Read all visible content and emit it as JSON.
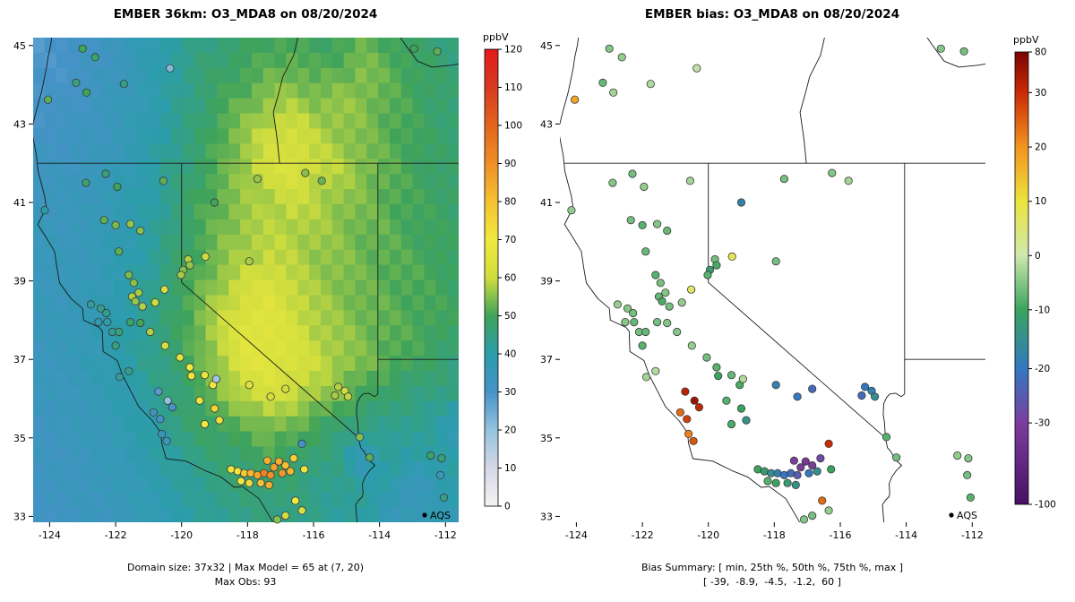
{
  "panels": [
    {
      "title": "EMBER 36km: O3_MDA8 on 08/20/2024",
      "colorbar_label": "ppbV",
      "legend_label": "AQS",
      "caption_line1": "Domain size: 37x32 | Max Model = 65 at (7, 20)",
      "caption_line2": "Max Obs: 93"
    },
    {
      "title": "EMBER bias: O3_MDA8 on 08/20/2024",
      "colorbar_label": "ppbV",
      "legend_label": "AQS",
      "caption_line1": "Bias Summary: [ min, 25th %, 50th %, 75th %, max ]",
      "caption_line2": "[ -39,  -8.9,  -4.5,  -1.2,  60 ]"
    }
  ],
  "stations": {
    "columns": [
      "lon",
      "lat",
      "obs_ppbv",
      "bias_ppbv"
    ],
    "rows": [
      [
        -123.0,
        44.92,
        50,
        -5
      ],
      [
        -122.62,
        44.7,
        48,
        -4
      ],
      [
        -123.2,
        44.05,
        46,
        -7
      ],
      [
        -122.88,
        43.8,
        50,
        -3
      ],
      [
        -124.05,
        43.62,
        52,
        18
      ],
      [
        -121.75,
        44.02,
        44,
        -2
      ],
      [
        -120.35,
        44.42,
        22,
        -1
      ],
      [
        -112.25,
        44.85,
        52,
        -6
      ],
      [
        -112.95,
        44.92,
        50,
        -5
      ],
      [
        -124.15,
        40.8,
        40,
        -4
      ],
      [
        -122.3,
        41.73,
        46,
        -6
      ],
      [
        -122.9,
        41.5,
        48,
        -5
      ],
      [
        -121.95,
        41.4,
        50,
        -4
      ],
      [
        -120.55,
        41.55,
        52,
        -3
      ],
      [
        -122.35,
        40.55,
        52,
        -6
      ],
      [
        -122.0,
        40.42,
        54,
        -8
      ],
      [
        -121.55,
        40.45,
        56,
        -5
      ],
      [
        -121.25,
        40.28,
        55,
        -7
      ],
      [
        -119.0,
        41.0,
        50,
        -18
      ],
      [
        -117.7,
        41.6,
        56,
        -6
      ],
      [
        -116.25,
        41.75,
        55,
        -5
      ],
      [
        -115.75,
        41.55,
        53,
        -3
      ],
      [
        -119.8,
        39.55,
        58,
        -6
      ],
      [
        -119.75,
        39.4,
        56,
        -9
      ],
      [
        -119.95,
        39.28,
        55,
        -12
      ],
      [
        -120.02,
        39.15,
        57,
        -8
      ],
      [
        -119.28,
        39.62,
        60,
        8
      ],
      [
        -117.95,
        39.5,
        57,
        -6
      ],
      [
        -121.9,
        39.75,
        52,
        -7
      ],
      [
        -121.6,
        39.15,
        54,
        -8
      ],
      [
        -121.45,
        38.95,
        55,
        -6
      ],
      [
        -121.3,
        38.7,
        57,
        -5
      ],
      [
        -121.5,
        38.6,
        58,
        -7
      ],
      [
        -121.4,
        38.48,
        56,
        -9
      ],
      [
        -121.18,
        38.35,
        58,
        -6
      ],
      [
        -120.8,
        38.45,
        60,
        -4
      ],
      [
        -120.52,
        38.78,
        62,
        6
      ],
      [
        -122.45,
        38.3,
        44,
        -5
      ],
      [
        -122.75,
        38.4,
        42,
        -4
      ],
      [
        -122.28,
        38.18,
        43,
        -6
      ],
      [
        -122.52,
        37.95,
        38,
        -5
      ],
      [
        -122.25,
        37.95,
        40,
        -7
      ],
      [
        -122.1,
        37.7,
        42,
        -6
      ],
      [
        -122.0,
        37.35,
        45,
        -8
      ],
      [
        -121.9,
        37.7,
        46,
        -7
      ],
      [
        -121.55,
        37.95,
        48,
        -6
      ],
      [
        -121.25,
        37.93,
        50,
        -5
      ],
      [
        -121.88,
        36.55,
        42,
        -3
      ],
      [
        -121.6,
        36.7,
        44,
        -2
      ],
      [
        -120.85,
        35.65,
        32,
        24
      ],
      [
        -120.65,
        35.48,
        30,
        28
      ],
      [
        -120.6,
        35.1,
        34,
        22
      ],
      [
        -120.45,
        34.92,
        33,
        26
      ],
      [
        -120.7,
        36.18,
        28,
        40
      ],
      [
        -120.42,
        35.95,
        20,
        60
      ],
      [
        -120.28,
        35.78,
        30,
        34
      ],
      [
        -120.95,
        37.7,
        58,
        -5
      ],
      [
        -120.5,
        37.35,
        62,
        -4
      ],
      [
        -120.05,
        37.05,
        66,
        -6
      ],
      [
        -119.75,
        36.8,
        70,
        -8
      ],
      [
        -119.7,
        36.58,
        72,
        -10
      ],
      [
        -119.3,
        36.6,
        68,
        -7
      ],
      [
        -119.05,
        36.35,
        70,
        -9
      ],
      [
        -118.95,
        36.5,
        18,
        -2
      ],
      [
        -119.45,
        35.95,
        72,
        -8
      ],
      [
        -119.0,
        35.75,
        75,
        -10
      ],
      [
        -118.85,
        35.45,
        73,
        -14
      ],
      [
        -119.3,
        35.35,
        70,
        -9
      ],
      [
        -117.95,
        36.35,
        64,
        -18
      ],
      [
        -117.3,
        36.05,
        62,
        -20
      ],
      [
        -116.85,
        36.25,
        60,
        -22
      ],
      [
        -115.25,
        36.3,
        58,
        -20
      ],
      [
        -115.05,
        36.2,
        60,
        -18
      ],
      [
        -115.35,
        36.08,
        57,
        -22
      ],
      [
        -114.95,
        36.05,
        59,
        -15
      ],
      [
        -118.5,
        34.2,
        68,
        -10
      ],
      [
        -118.3,
        34.15,
        72,
        -12
      ],
      [
        -118.1,
        34.1,
        78,
        -15
      ],
      [
        -117.9,
        34.1,
        82,
        -18
      ],
      [
        -117.7,
        34.05,
        85,
        -20
      ],
      [
        -117.5,
        34.1,
        93,
        -22
      ],
      [
        -117.3,
        34.05,
        90,
        -25
      ],
      [
        -117.2,
        34.25,
        86,
        -35
      ],
      [
        -117.05,
        34.4,
        84,
        -39
      ],
      [
        -116.85,
        34.3,
        80,
        -32
      ],
      [
        -117.4,
        34.42,
        83,
        -30
      ],
      [
        -116.95,
        34.1,
        88,
        -20
      ],
      [
        -116.7,
        34.15,
        82,
        -15
      ],
      [
        -116.6,
        34.48,
        76,
        -28
      ],
      [
        -118.2,
        33.9,
        70,
        -8
      ],
      [
        -117.95,
        33.85,
        74,
        -10
      ],
      [
        -117.6,
        33.85,
        80,
        -12
      ],
      [
        -117.35,
        33.8,
        84,
        -14
      ],
      [
        -116.28,
        34.2,
        72,
        -10
      ],
      [
        -116.35,
        34.85,
        30,
        30
      ],
      [
        -117.1,
        32.92,
        55,
        -5
      ],
      [
        -116.85,
        33.02,
        60,
        -6
      ],
      [
        -116.55,
        33.4,
        70,
        24
      ],
      [
        -116.35,
        33.15,
        62,
        -4
      ],
      [
        -114.6,
        35.02,
        55,
        -8
      ],
      [
        -114.3,
        34.5,
        52,
        -6
      ],
      [
        -112.45,
        34.55,
        48,
        -4
      ],
      [
        -112.12,
        34.48,
        46,
        -5
      ],
      [
        -112.15,
        34.05,
        34,
        -6
      ],
      [
        -112.05,
        33.48,
        44,
        -8
      ]
    ]
  },
  "chart_data": [
    {
      "type": "heatmap",
      "title": "EMBER 36km: O3_MDA8 on 08/20/2024",
      "xlabel": "",
      "ylabel": "",
      "colorbar_label": "ppbV",
      "xlim": [
        -124.5,
        -111.6
      ],
      "ylim": [
        32.85,
        45.2
      ],
      "xticks": [
        -124,
        -122,
        -120,
        -118,
        -116,
        -114,
        -112
      ],
      "yticks": [
        33,
        35,
        37,
        39,
        41,
        43,
        45
      ],
      "zlim": [
        0,
        120
      ],
      "colorbar_ticks": [
        0,
        10,
        20,
        30,
        40,
        50,
        60,
        70,
        80,
        90,
        100,
        110,
        120
      ],
      "colormap": [
        [
          0,
          "#f4f3f3"
        ],
        [
          10,
          "#d6d7e6"
        ],
        [
          20,
          "#94c3de"
        ],
        [
          30,
          "#4692c8"
        ],
        [
          40,
          "#2b9daa"
        ],
        [
          50,
          "#3fa35a"
        ],
        [
          60,
          "#cfdd3e"
        ],
        [
          70,
          "#f0ea3e"
        ],
        [
          80,
          "#f5c132"
        ],
        [
          90,
          "#ef8f28"
        ],
        [
          100,
          "#e2661d"
        ],
        [
          110,
          "#d73a20"
        ],
        [
          120,
          "#e31a1c"
        ]
      ],
      "domain_cols": 37,
      "domain_rows": 32,
      "max_model": 65,
      "max_model_at": [
        7,
        20
      ],
      "max_obs": 93,
      "points_source": "stations.rows (colored by obs_ppbv)",
      "grid": {
        "note": "coarse estimate of the 37x32 model field, ppbV; rows top(45N) to bottom(33N), cols west(-124.5) to east(-111.6)",
        "ncols": 19,
        "nrows": 16,
        "values": [
          [
            29,
            30,
            31,
            33,
            35,
            38,
            41,
            44,
            46,
            48,
            50,
            50,
            48,
            50,
            52,
            50,
            48,
            46,
            45
          ],
          [
            29,
            30,
            31,
            33,
            35,
            38,
            42,
            46,
            48,
            50,
            52,
            53,
            51,
            52,
            55,
            52,
            50,
            48,
            46
          ],
          [
            30,
            31,
            32,
            34,
            36,
            38,
            42,
            46,
            50,
            53,
            56,
            57,
            55,
            56,
            55,
            52,
            50,
            48,
            46
          ],
          [
            31,
            32,
            33,
            34,
            36,
            39,
            43,
            47,
            52,
            56,
            60,
            62,
            58,
            56,
            54,
            52,
            50,
            48,
            47
          ],
          [
            33,
            33,
            34,
            35,
            37,
            40,
            44,
            48,
            52,
            57,
            62,
            63,
            60,
            58,
            55,
            52,
            50,
            48,
            47
          ],
          [
            34,
            34,
            34,
            36,
            38,
            40,
            45,
            50,
            53,
            56,
            58,
            60,
            58,
            56,
            54,
            52,
            50,
            49,
            48
          ],
          [
            35,
            34,
            35,
            36,
            38,
            41,
            46,
            50,
            54,
            57,
            58,
            58,
            57,
            55,
            53,
            52,
            50,
            49,
            48
          ],
          [
            35,
            35,
            35,
            37,
            39,
            42,
            47,
            51,
            55,
            58,
            60,
            58,
            56,
            55,
            53,
            52,
            51,
            50,
            48
          ],
          [
            35,
            35,
            36,
            37,
            40,
            43,
            48,
            53,
            58,
            62,
            64,
            60,
            57,
            55,
            53,
            52,
            51,
            50,
            49
          ],
          [
            35,
            35,
            36,
            38,
            40,
            44,
            48,
            54,
            60,
            65,
            65,
            62,
            58,
            56,
            54,
            52,
            51,
            50,
            48
          ],
          [
            34,
            35,
            36,
            38,
            40,
            44,
            47,
            52,
            58,
            65,
            65,
            63,
            60,
            57,
            54,
            52,
            50,
            48,
            46
          ],
          [
            34,
            34,
            35,
            37,
            39,
            42,
            46,
            50,
            55,
            60,
            62,
            60,
            57,
            54,
            50,
            48,
            46,
            45,
            44
          ],
          [
            33,
            34,
            35,
            36,
            38,
            41,
            45,
            48,
            50,
            52,
            55,
            53,
            50,
            47,
            45,
            44,
            43,
            42,
            36
          ],
          [
            33,
            33,
            34,
            35,
            37,
            39,
            42,
            45,
            47,
            48,
            50,
            48,
            46,
            44,
            34,
            42,
            41,
            40,
            40
          ],
          [
            32,
            33,
            34,
            35,
            36,
            38,
            40,
            43,
            45,
            46,
            47,
            46,
            44,
            43,
            42,
            40,
            32,
            38,
            40
          ],
          [
            32,
            32,
            33,
            34,
            35,
            37,
            39,
            41,
            43,
            44,
            45,
            44,
            43,
            42,
            41,
            35,
            38,
            36,
            38
          ]
        ]
      }
    },
    {
      "type": "scatter",
      "title": "EMBER bias: O3_MDA8 on 08/20/2024",
      "xlabel": "",
      "ylabel": "",
      "colorbar_label": "ppbV",
      "xlim": [
        -124.5,
        -111.6
      ],
      "ylim": [
        32.85,
        45.2
      ],
      "xticks": [
        -124,
        -122,
        -120,
        -118,
        -116,
        -114,
        -112
      ],
      "yticks": [
        33,
        35,
        37,
        39,
        41,
        43,
        45
      ],
      "colorbar_ticks": [
        80,
        30,
        20,
        10,
        0,
        -10,
        -20,
        -30,
        -100
      ],
      "colorbar_anchors": [
        [
          80,
          0.0,
          "#7a0403"
        ],
        [
          30,
          0.09,
          "#c92b05"
        ],
        [
          20,
          0.21,
          "#f29420"
        ],
        [
          10,
          0.33,
          "#ece43c"
        ],
        [
          0,
          0.45,
          "#cfe8ae"
        ],
        [
          -10,
          0.57,
          "#39a45e"
        ],
        [
          -20,
          0.7,
          "#3378c1"
        ],
        [
          -30,
          0.82,
          "#7c3e9e"
        ],
        [
          -100,
          1.0,
          "#471063"
        ]
      ],
      "bias_summary": {
        "labels": [
          "min",
          "25th %",
          "50th %",
          "75th %",
          "max"
        ],
        "values": [
          -39,
          -8.9,
          -4.5,
          -1.2,
          60
        ]
      },
      "points_source": "stations.rows (colored by bias_ppbv)",
      "legend": "AQS"
    }
  ]
}
